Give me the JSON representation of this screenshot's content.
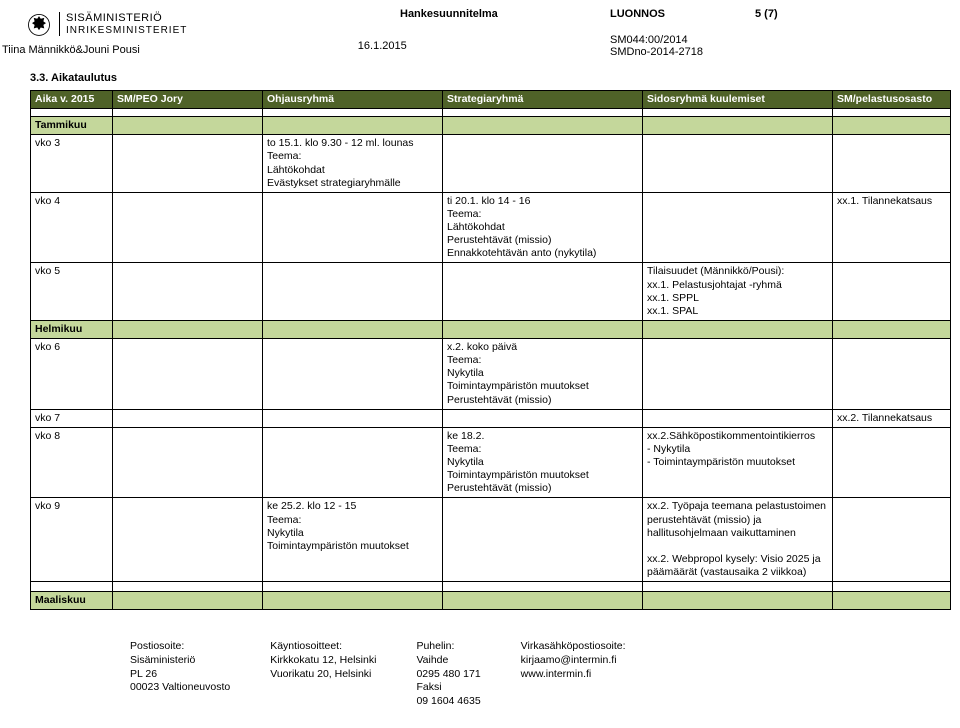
{
  "header": {
    "ministry_line1": "SISÄMINISTERIÖ",
    "ministry_line2": "INRIKESMINISTERIET",
    "doc_type": "Hankesuunnitelma",
    "status": "LUONNOS",
    "page_of": "5 (7)",
    "ref1": "SM044:00/2014",
    "ref2": "SMDno-2014-2718",
    "authors": "Tiina Männikkö&Jouni Pousi",
    "date": "16.1.2015"
  },
  "section_title": "3.3. Aikataulutus",
  "columns": {
    "a": "Aika v. 2015",
    "b": "SM/PEO Jory",
    "c": "Ohjausryhmä",
    "d": "Strategiaryhmä",
    "e": "Sidosryhmä kuulemiset",
    "f": "SM/pelastusosasto"
  },
  "months": {
    "jan": "Tammikuu",
    "feb": "Helmikuu",
    "mar": "Maaliskuu"
  },
  "rows": {
    "vko3": {
      "label": "vko 3",
      "c": "to 15.1. klo 9.30 - 12 ml. lounas\nTeema:\nLähtökohdat\nEvästykset strategiaryhmälle"
    },
    "vko4": {
      "label": "vko 4",
      "d": "ti 20.1. klo 14 - 16\nTeema:\nLähtökohdat\nPerustehtävät (missio)\nEnnakkotehtävän anto (nykytila)",
      "f": "xx.1. Tilannekatsaus"
    },
    "vko5": {
      "label": "vko 5",
      "e": "Tilaisuudet (Männikkö/Pousi):\nxx.1. Pelastusjohtajat -ryhmä\nxx.1. SPPL\nxx.1. SPAL"
    },
    "vko6": {
      "label": "vko 6",
      "d": "x.2. koko päivä\nTeema:\nNykytila\nToimintaympäristön muutokset\nPerustehtävät (missio)"
    },
    "vko7": {
      "label": "vko 7",
      "f": "xx.2. Tilannekatsaus"
    },
    "vko8": {
      "label": "vko 8",
      "d": "ke 18.2.\nTeema:\nNykytila\nToimintaympäristön muutokset\nPerustehtävät (missio)",
      "e": "xx.2.Sähköpostikommentointikierros\n- Nykytila\n- Toimintaympäristön muutokset"
    },
    "vko9": {
      "label": "vko 9",
      "c": "ke 25.2. klo 12 - 15\nTeema:\nNykytila\nToimintaympäristön muutokset",
      "e": "xx.2. Työpaja teemana pelastustoimen perustehtävät (missio) ja hallitusohjelmaan vaikuttaminen\n\nxx.2. Webpropol kysely: Visio 2025 ja päämäärät (vastausaika 2 viikkoa)"
    }
  },
  "footer": {
    "c1": {
      "h": "Postiosoite:",
      "l1": "Sisäministeriö",
      "l2": "PL 26",
      "l3": "00023 Valtioneuvosto"
    },
    "c2": {
      "h": "Käyntiosoitteet:",
      "l1": "Kirkkokatu 12, Helsinki",
      "l2": "Vuorikatu 20, Helsinki"
    },
    "c3": {
      "h": "Puhelin:",
      "l1": "Vaihde",
      "l2": "0295 480 171",
      "l3": "Faksi",
      "l4": "09 1604 4635"
    },
    "c4": {
      "h": "Virkasähköpostiosoite:",
      "l1": "kirjaamo@intermin.fi",
      "l2": "www.intermin.fi"
    }
  },
  "colors": {
    "header_bg": "#4f6228",
    "header_text": "#ffffff",
    "month_bg": "#c4d79b",
    "border": "#000000"
  }
}
